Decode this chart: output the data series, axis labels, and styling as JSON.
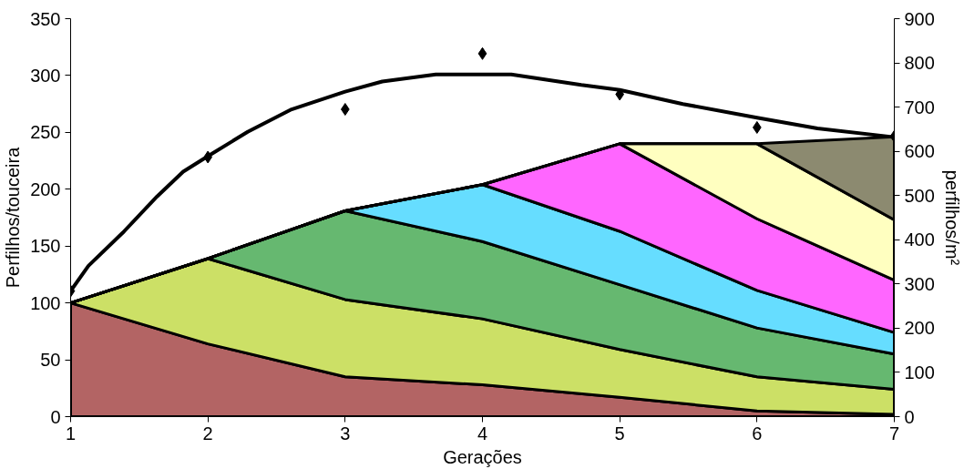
{
  "chart_data": {
    "type": "area",
    "stacked": true,
    "xlabel": "Gerações",
    "ylabel": "Perfilhos/touceira",
    "y2label": "perfilhos/m²",
    "x": [
      1,
      2,
      3,
      4,
      5,
      6,
      7
    ],
    "xlim": [
      1,
      7
    ],
    "xticks": [
      1,
      2,
      3,
      4,
      5,
      6,
      7
    ],
    "ylim": [
      0,
      350
    ],
    "yticks": [
      0,
      50,
      100,
      150,
      200,
      250,
      300,
      350
    ],
    "y2lim": [
      0,
      900
    ],
    "y2ticks": [
      0,
      100,
      200,
      300,
      400,
      500,
      600,
      700,
      800,
      900
    ],
    "grid": false,
    "series": [
      {
        "color": "#b36464",
        "values": [
          100,
          64,
          35,
          28,
          17,
          5,
          2
        ]
      },
      {
        "color": "#cce066",
        "values": [
          0,
          75,
          68,
          58,
          42,
          30,
          22
        ]
      },
      {
        "color": "#66b870",
        "values": [
          0,
          0,
          78,
          68,
          57,
          43,
          31
        ]
      },
      {
        "color": "#66ddff",
        "values": [
          0,
          0,
          0,
          50,
          47,
          33,
          19
        ]
      },
      {
        "color": "#ff66ff",
        "values": [
          0,
          0,
          0,
          0,
          77,
          63,
          46
        ]
      },
      {
        "color": "#ffffc0",
        "values": [
          0,
          0,
          0,
          0,
          0,
          66,
          53
        ]
      },
      {
        "color": "#8c8a70",
        "values": [
          0,
          0,
          0,
          0,
          0,
          0,
          73
        ]
      },
      {
        "type": "scatter",
        "axis": "y2",
        "color": "#000000",
        "marker": "diamond",
        "values": [
          284,
          587,
          695,
          821,
          729,
          654,
          634
        ]
      },
      {
        "type": "line",
        "axis": "y2",
        "color": "#000000",
        "line_style": "solid",
        "x": [
          1,
          1.13,
          1.38,
          1.63,
          1.82,
          2,
          2.29,
          2.61,
          3,
          3.27,
          3.66,
          4.21,
          4.72,
          5,
          5.46,
          6,
          6.44,
          7
        ],
        "values": [
          284,
          341,
          416,
          498,
          554,
          589,
          644,
          695,
          735,
          758,
          774,
          774,
          750,
          739,
          707,
          676,
          652,
          632
        ]
      }
    ]
  }
}
